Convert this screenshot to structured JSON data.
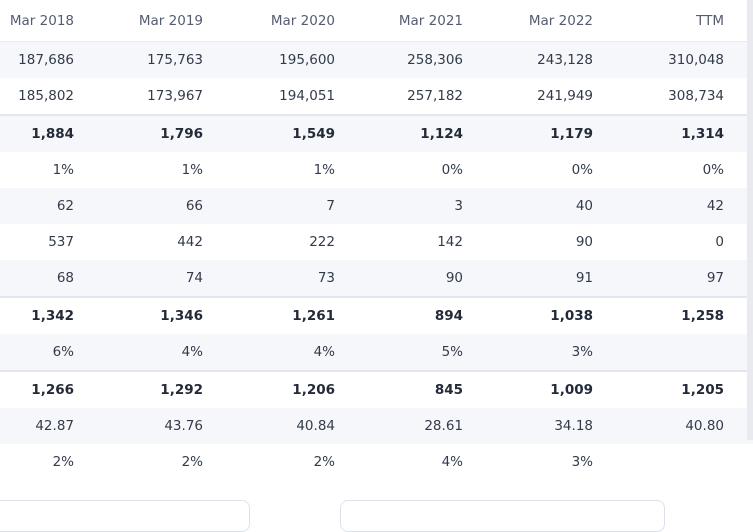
{
  "columns": [
    "Mar 2018",
    "Mar 2019",
    "Mar 2020",
    "Mar 2021",
    "Mar 2022",
    "TTM"
  ],
  "rows": [
    {
      "values": [
        "187,686",
        "175,763",
        "195,600",
        "258,306",
        "243,128",
        "310,048"
      ],
      "bold": false,
      "alt": true,
      "sep": false
    },
    {
      "values": [
        "185,802",
        "173,967",
        "194,051",
        "257,182",
        "241,949",
        "308,734"
      ],
      "bold": false,
      "alt": false,
      "sep": false
    },
    {
      "values": [
        "1,884",
        "1,796",
        "1,549",
        "1,124",
        "1,179",
        "1,314"
      ],
      "bold": true,
      "alt": true,
      "sep": true
    },
    {
      "values": [
        "1%",
        "1%",
        "1%",
        "0%",
        "0%",
        "0%"
      ],
      "bold": false,
      "alt": false,
      "sep": false
    },
    {
      "values": [
        "62",
        "66",
        "7",
        "3",
        "40",
        "42"
      ],
      "bold": false,
      "alt": true,
      "sep": false
    },
    {
      "values": [
        "537",
        "442",
        "222",
        "142",
        "90",
        "0"
      ],
      "bold": false,
      "alt": false,
      "sep": false
    },
    {
      "values": [
        "68",
        "74",
        "73",
        "90",
        "91",
        "97"
      ],
      "bold": false,
      "alt": true,
      "sep": false
    },
    {
      "values": [
        "1,342",
        "1,346",
        "1,261",
        "894",
        "1,038",
        "1,258"
      ],
      "bold": true,
      "alt": false,
      "sep": true
    },
    {
      "values": [
        "6%",
        "4%",
        "4%",
        "5%",
        "3%",
        ""
      ],
      "bold": false,
      "alt": true,
      "sep": false
    },
    {
      "values": [
        "1,266",
        "1,292",
        "1,206",
        "845",
        "1,009",
        "1,205"
      ],
      "bold": true,
      "alt": false,
      "sep": true
    },
    {
      "values": [
        "42.87",
        "43.76",
        "40.84",
        "28.61",
        "34.18",
        "40.80"
      ],
      "bold": false,
      "alt": true,
      "sep": false
    },
    {
      "values": [
        "2%",
        "2%",
        "2%",
        "4%",
        "3%",
        ""
      ],
      "bold": false,
      "alt": false,
      "sep": false
    }
  ],
  "colors": {
    "alt_row": "#f6f7fb",
    "separator": "#e3e6ee",
    "text": "#333b4a",
    "header_text": "#545d70"
  }
}
